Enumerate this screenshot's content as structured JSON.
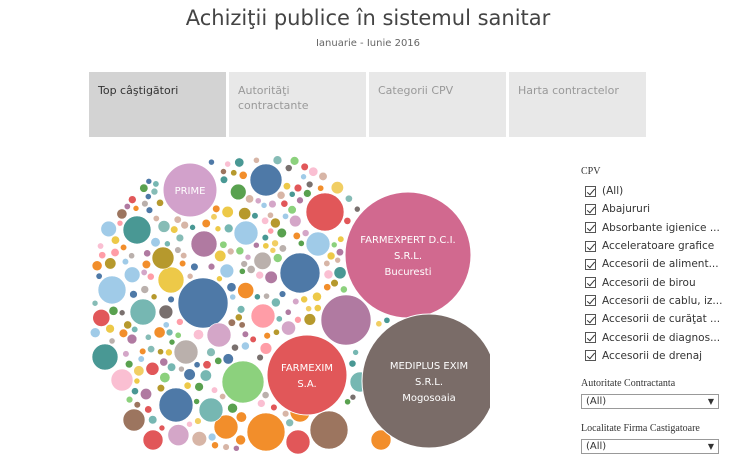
{
  "header": {
    "title": "Achiziţii publice în sistemul sanitar",
    "subtitle": "Ianuarie - Iunie 2016"
  },
  "tabs": [
    {
      "label": "Top câştigători",
      "active": true
    },
    {
      "label": "Autorităţi contractante",
      "active": false
    },
    {
      "label": "Categorii CPV",
      "active": false
    },
    {
      "label": "Harta contractelor",
      "active": false
    }
  ],
  "bubbles": {
    "labeled": [
      {
        "lines": [
          "FARMEXPERT D.C.I.",
          "S.R.L.",
          "Bucuresti"
        ],
        "color": "#d1698f"
      },
      {
        "lines": [
          "MEDIPLUS EXIM",
          "S.R.L.",
          "Mogosoaia"
        ],
        "color": "#7a6c68"
      },
      {
        "lines": [
          "FARMEXIM",
          "S.A."
        ],
        "color": "#e15759"
      },
      {
        "lines": [
          "PRIME"
        ],
        "color": "#d2a1cb"
      }
    ]
  },
  "sidebar": {
    "cpv": {
      "title": "CPV",
      "items": [
        "(All)",
        "Abajururi",
        "Absorbante igienice ...",
        "Acceleratoare grafice",
        "Accesorii de aliment...",
        "Accesorii de birou",
        "Accesorii de cablu, iz...",
        "Accesorii de curăţat ...",
        "Accesorii de diagnos...",
        "Accesorii de drenaj"
      ]
    },
    "authority": {
      "title": "Autoritate Contractanta",
      "value": "(All)"
    },
    "locality": {
      "title": "Localitate Firma Castigatoare",
      "value": "(All)"
    }
  },
  "colors": {
    "palette": [
      "#4e79a7",
      "#f28e2b",
      "#e15759",
      "#76b7b2",
      "#59a14f",
      "#edc948",
      "#b07aa1",
      "#ff9da7",
      "#9c755f",
      "#bab0ac",
      "#a0cbe8",
      "#8cd17d",
      "#86bcb6",
      "#f1ce63",
      "#d4a6c8",
      "#fabfd2",
      "#b6992d",
      "#499894",
      "#d7b5a6",
      "#79706e"
    ]
  }
}
